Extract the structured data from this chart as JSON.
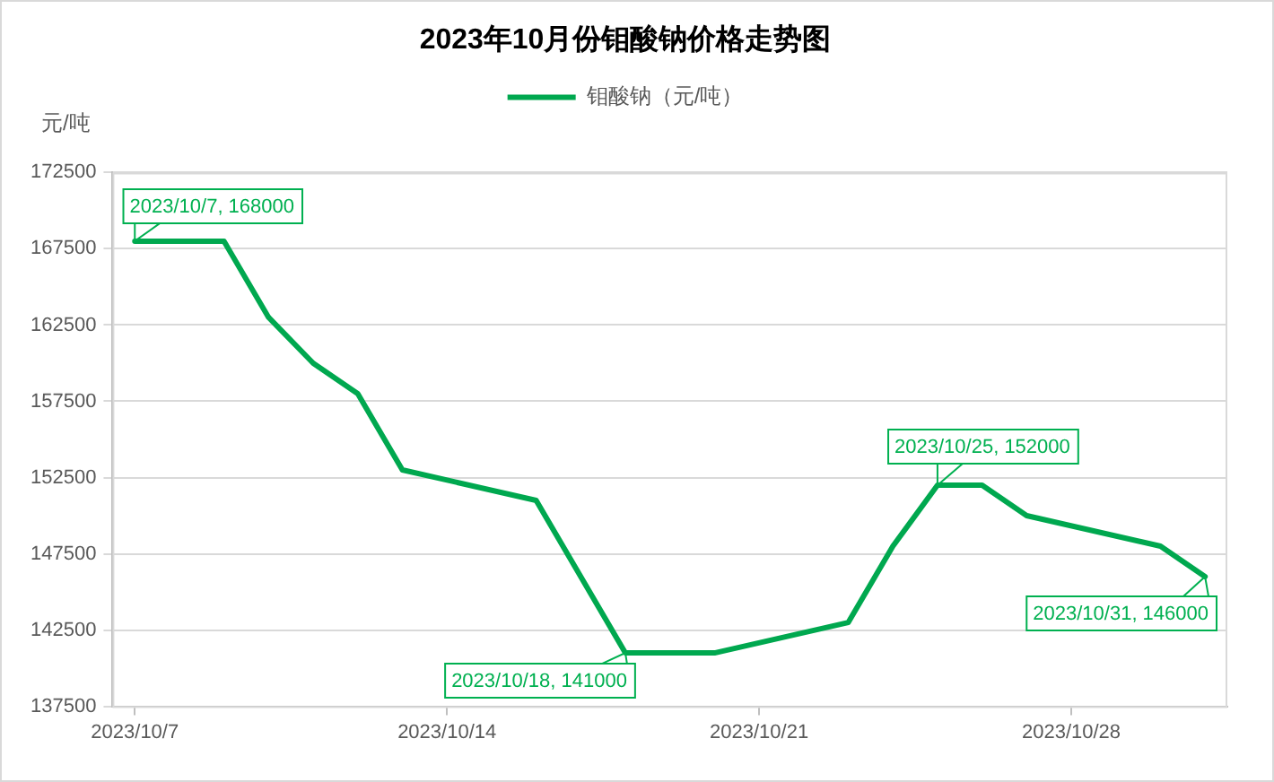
{
  "chart_data": {
    "type": "line",
    "title": "2023年10月份钼酸钠价格走势图",
    "ylabel": "元/吨",
    "x": [
      "2023-10-07",
      "2023-10-09",
      "2023-10-10",
      "2023-10-11",
      "2023-10-12",
      "2023-10-13",
      "2023-10-16",
      "2023-10-18",
      "2023-10-20",
      "2023-10-23",
      "2023-10-24",
      "2023-10-25",
      "2023-10-26",
      "2023-10-27",
      "2023-10-30",
      "2023-10-31"
    ],
    "series": [
      {
        "name": "钼酸钠（元/吨）",
        "color": "#00a84f",
        "values": [
          168000,
          168000,
          163000,
          160000,
          158000,
          153000,
          151000,
          141000,
          141000,
          143000,
          148000,
          152000,
          152000,
          150000,
          148000,
          146000
        ]
      }
    ],
    "xlim": [
      "2023-10-06T12:00",
      "2023-10-31T12:00"
    ],
    "xticks": [
      {
        "value": "2023-10-07",
        "label": "2023/10/7"
      },
      {
        "value": "2023-10-14",
        "label": "2023/10/14"
      },
      {
        "value": "2023-10-21",
        "label": "2023/10/21"
      },
      {
        "value": "2023-10-28",
        "label": "2023/10/28"
      }
    ],
    "ylim": [
      137500,
      172500
    ],
    "yticks": [
      137500,
      142500,
      147500,
      152500,
      157500,
      162500,
      167500,
      172500
    ],
    "grid": "y",
    "legend": "top",
    "annotations": [
      {
        "text": "2023/10/7, 168000",
        "x": "2023-10-07",
        "y": 168000
      },
      {
        "text": "2023/10/18, 141000",
        "x": "2023-10-18",
        "y": 141000
      },
      {
        "text": "2023/10/25, 152000",
        "x": "2023-10-25",
        "y": 152000
      },
      {
        "text": "2023/10/31, 146000",
        "x": "2023-10-31",
        "y": 146000
      }
    ]
  }
}
